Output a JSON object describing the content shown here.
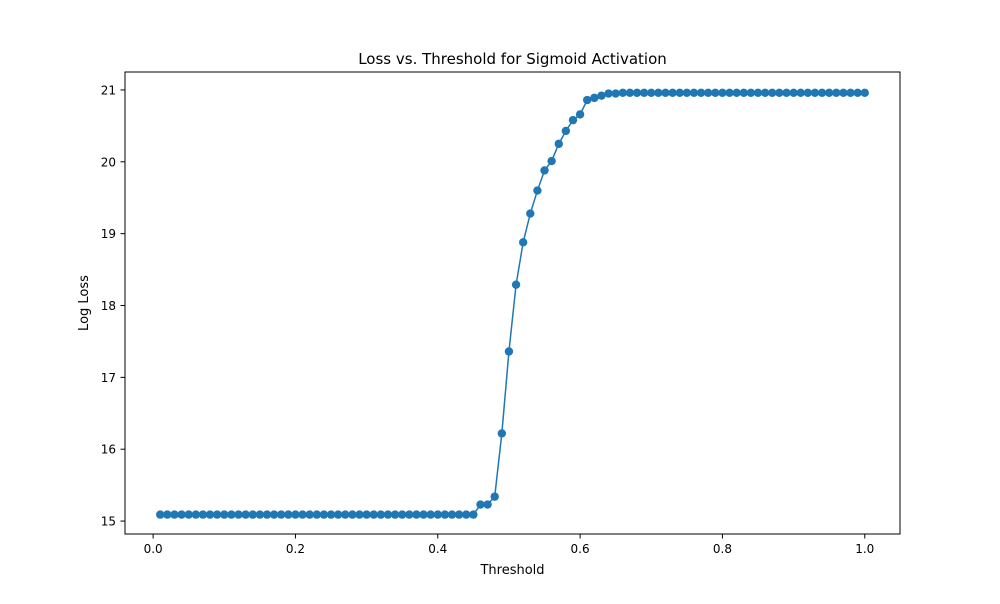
{
  "chart_data": {
    "type": "line",
    "title": "Loss vs. Threshold for Sigmoid Activation",
    "xlabel": "Threshold",
    "ylabel": "Log Loss",
    "xlim": [
      -0.0395,
      1.0495
    ],
    "ylim": [
      14.82,
      21.25
    ],
    "xticks": [
      0.0,
      0.2,
      0.4,
      0.6,
      0.8,
      1.0
    ],
    "xtick_labels": [
      "0.0",
      "0.2",
      "0.4",
      "0.6",
      "0.8",
      "1.0"
    ],
    "yticks": [
      15,
      16,
      17,
      18,
      19,
      20,
      21
    ],
    "ytick_labels": [
      "15",
      "16",
      "17",
      "18",
      "19",
      "20",
      "21"
    ],
    "grid": false,
    "legend": false,
    "marker": "circle",
    "line_color": "#1f77b4",
    "x_start": 0.01,
    "x_step": 0.01,
    "series": [
      {
        "values": [
          15.09,
          15.09,
          15.09,
          15.09,
          15.09,
          15.09,
          15.09,
          15.09,
          15.09,
          15.09,
          15.09,
          15.09,
          15.09,
          15.09,
          15.09,
          15.09,
          15.09,
          15.09,
          15.09,
          15.09,
          15.09,
          15.09,
          15.09,
          15.09,
          15.09,
          15.09,
          15.09,
          15.09,
          15.09,
          15.09,
          15.09,
          15.09,
          15.09,
          15.09,
          15.09,
          15.09,
          15.09,
          15.09,
          15.09,
          15.09,
          15.09,
          15.09,
          15.09,
          15.09,
          15.09,
          15.23,
          15.23,
          15.34,
          16.22,
          17.36,
          18.29,
          18.88,
          19.28,
          19.6,
          19.88,
          20.01,
          20.25,
          20.43,
          20.58,
          20.66,
          20.86,
          20.89,
          20.92,
          20.95,
          20.95,
          20.96,
          20.96,
          20.96,
          20.96,
          20.96,
          20.96,
          20.96,
          20.96,
          20.96,
          20.96,
          20.96,
          20.96,
          20.96,
          20.96,
          20.96,
          20.96,
          20.96,
          20.96,
          20.96,
          20.96,
          20.96,
          20.96,
          20.96,
          20.96,
          20.96,
          20.96,
          20.96,
          20.96,
          20.96,
          20.96,
          20.96,
          20.96,
          20.96,
          20.96,
          20.96
        ]
      }
    ]
  }
}
